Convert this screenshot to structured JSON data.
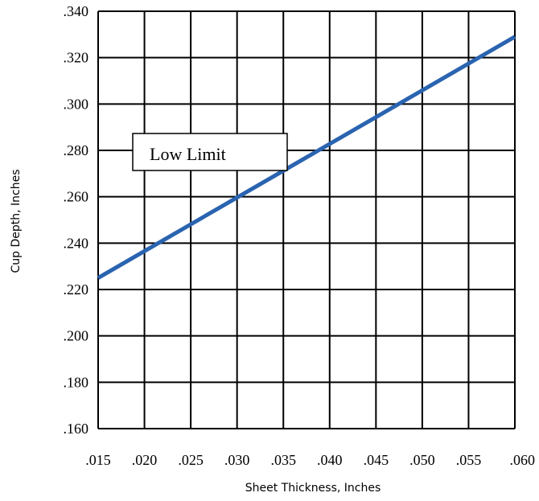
{
  "chart_data": {
    "type": "line",
    "xlabel": "Sheet Thickness, Inches",
    "ylabel": "Cup Depth, Inches",
    "xlim": [
      0.015,
      0.06
    ],
    "ylim": [
      0.16,
      0.34
    ],
    "x_ticks": [
      0.015,
      0.02,
      0.025,
      0.03,
      0.035,
      0.04,
      0.045,
      0.05,
      0.055,
      0.06
    ],
    "x_tick_labels": [
      ".015",
      ".020",
      ".025",
      ".030",
      ".035",
      ".040",
      ".045",
      ".050",
      ".055",
      ".060"
    ],
    "y_ticks": [
      0.16,
      0.18,
      0.2,
      0.22,
      0.24,
      0.26,
      0.28,
      0.3,
      0.32,
      0.34
    ],
    "y_tick_labels": [
      ".160",
      ".180",
      ".200",
      ".220",
      ".240",
      ".260",
      ".280",
      ".300",
      ".320",
      ".340"
    ],
    "grid": true,
    "series": [
      {
        "name": "Low Limit",
        "color": "#2a64b0",
        "x": [
          0.015,
          0.06
        ],
        "y": [
          0.225,
          0.329
        ]
      }
    ],
    "annotations": [
      {
        "text": "Low Limit",
        "x": 0.015,
        "y": 0.28
      }
    ]
  }
}
